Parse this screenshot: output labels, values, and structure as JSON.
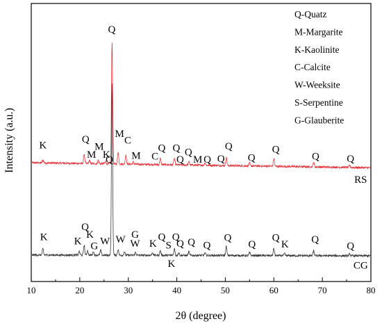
{
  "chart_data": {
    "type": "line",
    "xlabel": "2θ (degree)",
    "ylabel": "Intensity (a.u.)",
    "xlim": [
      10,
      80
    ],
    "x_ticks": [
      10,
      20,
      30,
      40,
      50,
      60,
      70,
      80
    ],
    "x_tick_labels": [
      "10",
      "20",
      "30",
      "40",
      "50",
      "60",
      "70",
      "80"
    ],
    "ylim": [
      0,
      100
    ],
    "y_ticks_labeled": false,
    "grid": false,
    "legend_position": "top-right",
    "legend": [
      "Q-Quatz",
      "M-Margarite",
      "K-Kaolinite",
      "C-Calcite",
      "W-Weeksite",
      "S-Serpentine",
      "G-Glauberite"
    ],
    "series": [
      {
        "name": "RS",
        "color": "#e8353b",
        "baseline": 40.5,
        "slope": -0.03,
        "peaks": [
          {
            "x": 12.4,
            "h": 1.2
          },
          {
            "x": 20.9,
            "h": 4.0
          },
          {
            "x": 22.0,
            "h": 1.2
          },
          {
            "x": 23.8,
            "h": 1.5
          },
          {
            "x": 25.3,
            "h": 1.0
          },
          {
            "x": 26.65,
            "h": 51.0
          },
          {
            "x": 27.9,
            "h": 5.2
          },
          {
            "x": 29.5,
            "h": 4.0
          },
          {
            "x": 31.0,
            "h": 1.0
          },
          {
            "x": 36.6,
            "h": 2.5
          },
          {
            "x": 39.5,
            "h": 2.8
          },
          {
            "x": 42.5,
            "h": 1.4
          },
          {
            "x": 45.8,
            "h": 1.0
          },
          {
            "x": 50.2,
            "h": 3.5
          },
          {
            "x": 55.0,
            "h": 1.2
          },
          {
            "x": 60.0,
            "h": 3.2
          },
          {
            "x": 68.2,
            "h": 2.0
          },
          {
            "x": 75.6,
            "h": 0.8
          }
        ],
        "labels": [
          {
            "text": "K",
            "x": 12.4,
            "y": 46.5
          },
          {
            "text": "Q",
            "x": 21.2,
            "y": 49.0
          },
          {
            "text": "M",
            "x": 22.4,
            "y": 42.6
          },
          {
            "text": "M",
            "x": 24.0,
            "y": 45.9
          },
          {
            "text": "K",
            "x": 25.5,
            "y": 42.6
          },
          {
            "text": "Q",
            "x": 26.6,
            "y": 95.0
          },
          {
            "text": "M",
            "x": 28.2,
            "y": 51.3
          },
          {
            "text": "C",
            "x": 29.9,
            "y": 48.5
          },
          {
            "text": "M",
            "x": 31.6,
            "y": 42.2
          },
          {
            "text": "C",
            "x": 35.5,
            "y": 41.9
          },
          {
            "text": "Q",
            "x": 36.9,
            "y": 45.4
          },
          {
            "text": "Q",
            "x": 39.9,
            "y": 45.4
          },
          {
            "text": "Q",
            "x": 40.7,
            "y": 40.5
          },
          {
            "text": "Q",
            "x": 42.4,
            "y": 43.6
          },
          {
            "text": "M",
            "x": 44.3,
            "y": 40.5
          },
          {
            "text": "Q",
            "x": 46.3,
            "y": 40.5
          },
          {
            "text": "Q",
            "x": 49.1,
            "y": 40.8
          },
          {
            "text": "Q",
            "x": 50.7,
            "y": 46.1
          },
          {
            "text": "Q",
            "x": 55.4,
            "y": 41.2
          },
          {
            "text": "Q",
            "x": 60.4,
            "y": 44.7
          },
          {
            "text": "Q",
            "x": 68.6,
            "y": 41.9
          },
          {
            "text": "Q",
            "x": 75.8,
            "y": 40.8
          }
        ]
      },
      {
        "name": "CG",
        "color": "#3a3a3a",
        "baseline": 1.8,
        "slope": -0.005,
        "peaks": [
          {
            "x": 12.4,
            "h": 2.5
          },
          {
            "x": 19.9,
            "h": 1.5
          },
          {
            "x": 20.9,
            "h": 4.2
          },
          {
            "x": 21.6,
            "h": 2.0
          },
          {
            "x": 22.8,
            "h": 1.5
          },
          {
            "x": 24.3,
            "h": 2.0
          },
          {
            "x": 26.65,
            "h": 72.0
          },
          {
            "x": 27.9,
            "h": 2.5
          },
          {
            "x": 29.2,
            "h": 1.5
          },
          {
            "x": 31.5,
            "h": 1.2
          },
          {
            "x": 35.0,
            "h": 1.2
          },
          {
            "x": 36.6,
            "h": 2.0
          },
          {
            "x": 39.5,
            "h": 2.8
          },
          {
            "x": 40.4,
            "h": 1.2
          },
          {
            "x": 42.5,
            "h": 1.6
          },
          {
            "x": 45.8,
            "h": 1.0
          },
          {
            "x": 50.2,
            "h": 3.8
          },
          {
            "x": 55.0,
            "h": 1.2
          },
          {
            "x": 60.0,
            "h": 3.0
          },
          {
            "x": 62.2,
            "h": 0.8
          },
          {
            "x": 68.2,
            "h": 2.0
          },
          {
            "x": 75.6,
            "h": 0.8
          }
        ],
        "labels": [
          {
            "text": "K",
            "x": 12.6,
            "y": 8.0
          },
          {
            "text": "K",
            "x": 19.6,
            "y": 6.3
          },
          {
            "text": "Q",
            "x": 21.1,
            "y": 12.2
          },
          {
            "text": "K",
            "x": 22.1,
            "y": 9.1
          },
          {
            "text": "G",
            "x": 23.0,
            "y": 4.2
          },
          {
            "text": "W",
            "x": 25.2,
            "y": 6.3
          },
          {
            "text": "Q",
            "x": 26.1,
            "y": 40.5
          },
          {
            "text": "W",
            "x": 28.4,
            "y": 7.0
          },
          {
            "text": "G",
            "x": 31.4,
            "y": 9.1
          },
          {
            "text": "W",
            "x": 31.4,
            "y": 5.2
          },
          {
            "text": "K",
            "x": 35.1,
            "y": 5.2
          },
          {
            "text": "Q",
            "x": 36.9,
            "y": 8.0
          },
          {
            "text": "S",
            "x": 38.3,
            "y": 4.5
          },
          {
            "text": "K",
            "x": 38.9,
            "y": -3.2
          },
          {
            "text": "Q",
            "x": 39.8,
            "y": 8.0
          },
          {
            "text": "Q",
            "x": 40.7,
            "y": 5.2
          },
          {
            "text": "Q",
            "x": 43.0,
            "y": 5.9
          },
          {
            "text": "Q",
            "x": 46.2,
            "y": 4.5
          },
          {
            "text": "Q",
            "x": 50.5,
            "y": 7.7
          },
          {
            "text": "Q",
            "x": 55.5,
            "y": 4.9
          },
          {
            "text": "Q",
            "x": 60.4,
            "y": 7.7
          },
          {
            "text": "K",
            "x": 62.3,
            "y": 4.9
          },
          {
            "text": "Q",
            "x": 68.5,
            "y": 7.0
          },
          {
            "text": "Q",
            "x": 75.8,
            "y": 4.2
          }
        ]
      }
    ],
    "series_labels": [
      {
        "text": "RS",
        "x": 77.9,
        "y": 32.0
      },
      {
        "text": "CG",
        "x": 77.9,
        "y": -3.9
      }
    ]
  }
}
